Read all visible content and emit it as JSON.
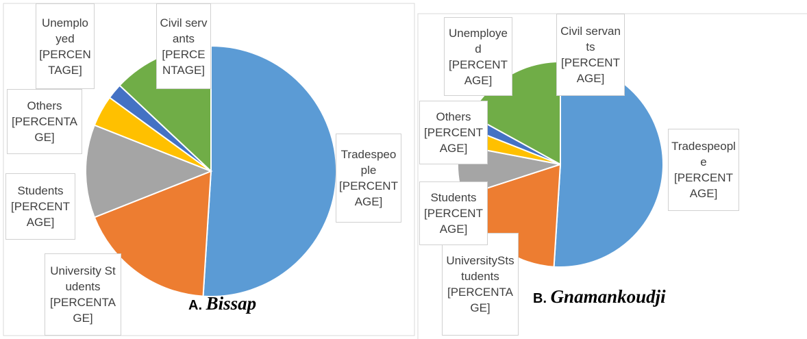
{
  "chart_data": [
    {
      "type": "pie",
      "letter": "A.",
      "title": "Bissap",
      "categories": [
        "Tradespeople",
        "University Students",
        "Students",
        "Others",
        "Unemployed",
        "Civil servants"
      ],
      "values": [
        51,
        18,
        12,
        4,
        2,
        13
      ],
      "value_labels": [
        "[PERCENTAGE]",
        "[PERCENTAGE]",
        "[PERCENTAGE]",
        "[PERCENTAGE]",
        "[PERCENTAGE]",
        "[PERCENTAGE]"
      ],
      "colors": [
        "#5b9bd5",
        "#ed7d31",
        "#a5a5a5",
        "#ffc000",
        "#4472c4",
        "#70ad47"
      ]
    },
    {
      "type": "pie",
      "letter": "B.",
      "title": "Gnamankoudji",
      "categories": [
        "Tradespeople",
        "UniversityStstudents",
        "Students",
        "Others",
        "Unemployed",
        "Civil servants"
      ],
      "values": [
        51,
        19,
        8,
        3,
        2,
        17
      ],
      "value_labels": [
        "[PERCENTAGE]",
        "[PERCENTAGE]",
        "[PERCENTAGE]",
        "[PERCENTAGE]",
        "[PERCENTAGE]",
        "[PERCENTAGE]"
      ],
      "colors": [
        "#5b9bd5",
        "#ed7d31",
        "#a5a5a5",
        "#ffc000",
        "#4472c4",
        "#70ad47"
      ]
    }
  ]
}
